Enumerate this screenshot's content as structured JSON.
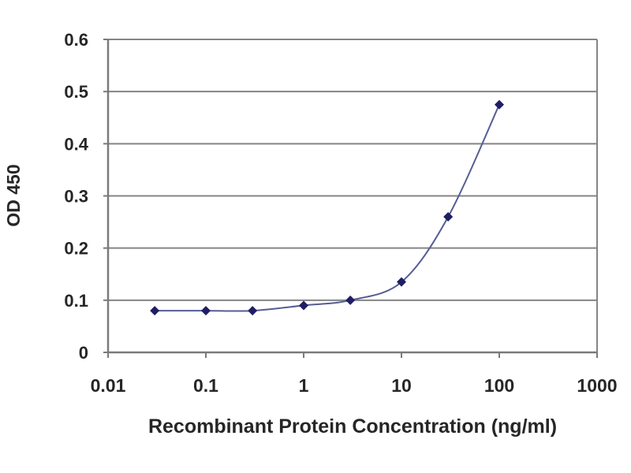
{
  "chart_data": {
    "type": "line",
    "title": "",
    "xlabel": "Recombinant Protein Concentration (ng/ml)",
    "ylabel": "OD 450",
    "x_scale": "log",
    "y_scale": "linear",
    "xlim": [
      0.01,
      1000
    ],
    "ylim": [
      0,
      0.6
    ],
    "x_ticks": [
      0.01,
      0.1,
      1,
      10,
      100,
      1000
    ],
    "x_tick_labels": [
      "0.01",
      "0.1",
      "1",
      "10",
      "100",
      "1000"
    ],
    "y_ticks": [
      0,
      0.1,
      0.2,
      0.3,
      0.4,
      0.5,
      0.6
    ],
    "y_tick_labels": [
      "0",
      "0.1",
      "0.2",
      "0.3",
      "0.4",
      "0.5",
      "0.6"
    ],
    "grid": "horizontal",
    "legend_position": "none",
    "series": [
      {
        "name": "OD 450",
        "marker": "diamond",
        "smooth": true,
        "x": [
          0.03,
          0.1,
          0.3,
          1,
          3,
          10,
          30,
          100
        ],
        "y": [
          0.08,
          0.08,
          0.08,
          0.09,
          0.1,
          0.135,
          0.26,
          0.475
        ],
        "line_color": "#555d94",
        "marker_color": "#201e63"
      }
    ],
    "colors": {
      "grid": "#858585",
      "axis": "#7a7a7a",
      "text": "#262626",
      "background": "#ffffff"
    }
  }
}
